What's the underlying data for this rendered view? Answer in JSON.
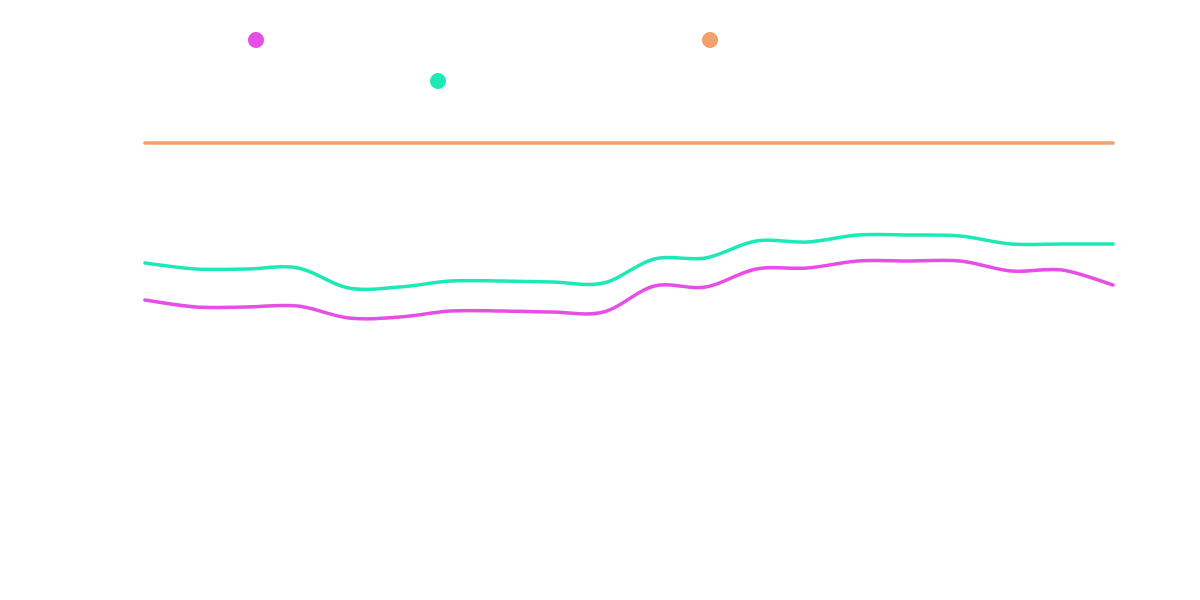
{
  "chart_data": {
    "type": "line",
    "x": [
      0,
      1,
      2,
      3,
      4,
      5,
      6,
      7,
      8,
      9,
      10,
      11,
      12,
      13,
      14,
      15,
      16,
      17,
      18,
      19
    ],
    "xlim": [
      0,
      19
    ],
    "ylim": [
      0,
      90
    ],
    "series": [
      {
        "color": "#e64ee6",
        "values": [
          52,
          50.6,
          50.6,
          50.8,
          48.4,
          48.6,
          49.8,
          49.8,
          49.6,
          49.6,
          54.8,
          54.6,
          58.2,
          58.4,
          59.8,
          59.8,
          59.8,
          57.8,
          58,
          55
        ]
      },
      {
        "color": "#1de9b6",
        "values": [
          59.4,
          58.2,
          58.2,
          58.4,
          54.4,
          54.6,
          55.8,
          55.8,
          55.6,
          55.4,
          60.2,
          60.4,
          63.8,
          63.6,
          65,
          65,
          64.8,
          63.2,
          63.2,
          63.2
        ]
      },
      {
        "color": "#f4a06a",
        "values": [
          83.4,
          83.4,
          83.4,
          83.4,
          83.4,
          83.4,
          83.4,
          83.4,
          83.4,
          83.4,
          83.4,
          83.4,
          83.4,
          83.4,
          83.4,
          83.4,
          83.4,
          83.4,
          83.4,
          83.4
        ]
      }
    ]
  }
}
